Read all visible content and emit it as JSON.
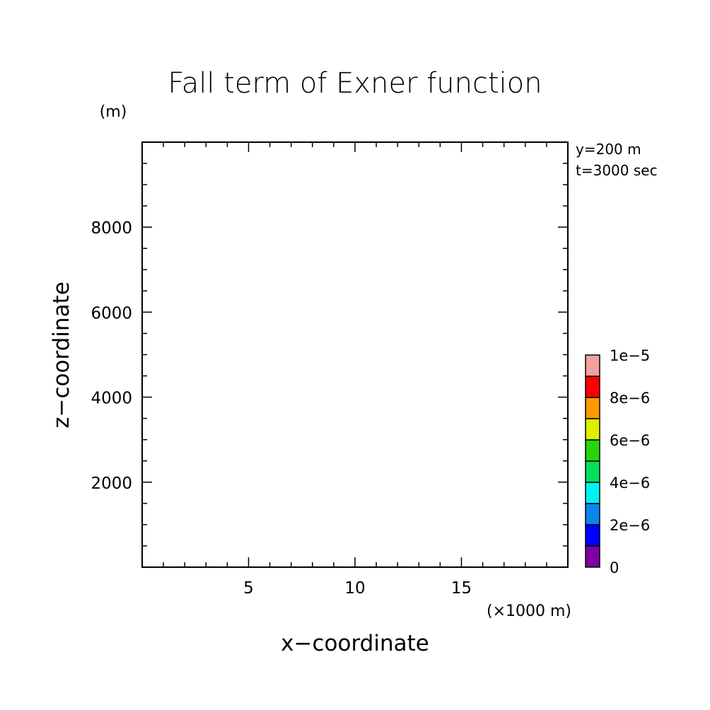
{
  "chart_data": {
    "type": "heatmap",
    "title": "Fall term of Exner function",
    "xlabel": "x−coordinate",
    "ylabel": "z−coordinate",
    "x_unit": "(×1000 m)",
    "y_unit": "(m)",
    "xlim": [
      0,
      20
    ],
    "ylim": [
      0,
      10000
    ],
    "x_ticks": [
      5,
      10,
      15
    ],
    "x_tick_labels": [
      "5",
      "10",
      "15"
    ],
    "y_ticks": [
      2000,
      4000,
      6000,
      8000
    ],
    "y_tick_labels": [
      "2000",
      "4000",
      "6000",
      "8000"
    ],
    "x_minor_step": 1,
    "y_minor_step": 500,
    "annotations": [
      "y=200 m",
      "t=3000 sec"
    ],
    "values": [],
    "colorbar": {
      "levels": [
        0,
        1e-06,
        2e-06,
        3e-06,
        4e-06,
        5e-06,
        6e-06,
        7e-06,
        8e-06,
        9e-06,
        1e-05
      ],
      "colors": [
        "#7f00a0",
        "#0000ff",
        "#0a86f0",
        "#00f2f2",
        "#00e05a",
        "#28d40a",
        "#dcf000",
        "#ff9a00",
        "#ff0000",
        "#f2a0a0"
      ],
      "tick_values": [
        0,
        2e-06,
        4e-06,
        6e-06,
        8e-06,
        1e-05
      ],
      "tick_labels": [
        "0",
        "2e−6",
        "4e−6",
        "6e−6",
        "8e−6",
        "1e−5"
      ]
    }
  }
}
